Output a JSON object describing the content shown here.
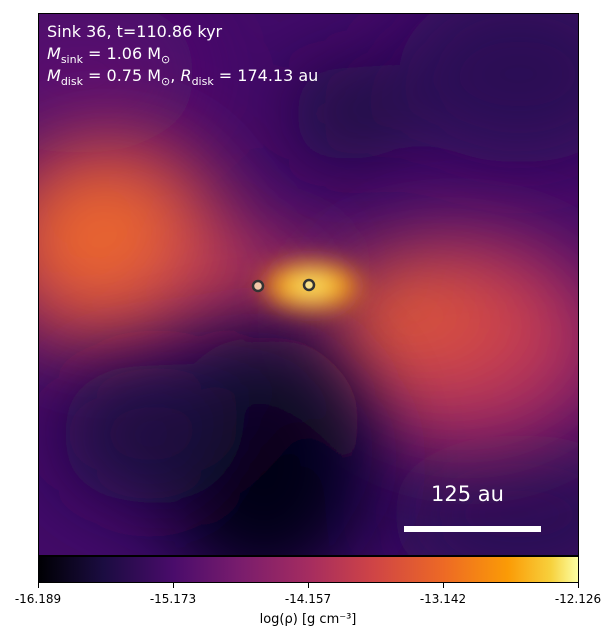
{
  "annotation": {
    "line1": "Sink 36, t=110.86 kyr",
    "line2_sym": "M",
    "line2_sub": "sink",
    "line2_rest": " = 1.06 M",
    "line2_sun": "⊙",
    "line3_sym": "M",
    "line3_sub": "disk",
    "line3_mid": " = 0.75 M",
    "line3_sun": "⊙",
    "line3_sep": ", ",
    "line3_sym2": "R",
    "line3_sub2": "disk",
    "line3_rest": " = 174.13 au"
  },
  "scale_bar": {
    "label": "125 au"
  },
  "colorbar": {
    "colormap": "inferno",
    "ticks": [
      "-16.189",
      "-15.173",
      "-14.157",
      "-13.142",
      "-12.126"
    ],
    "label": "log(ρ) [g cm⁻³]"
  },
  "colors": {
    "background_dark": "#1b0c41",
    "plume_orange": "#ed6925",
    "hot_yellow": "#fcffa4"
  }
}
